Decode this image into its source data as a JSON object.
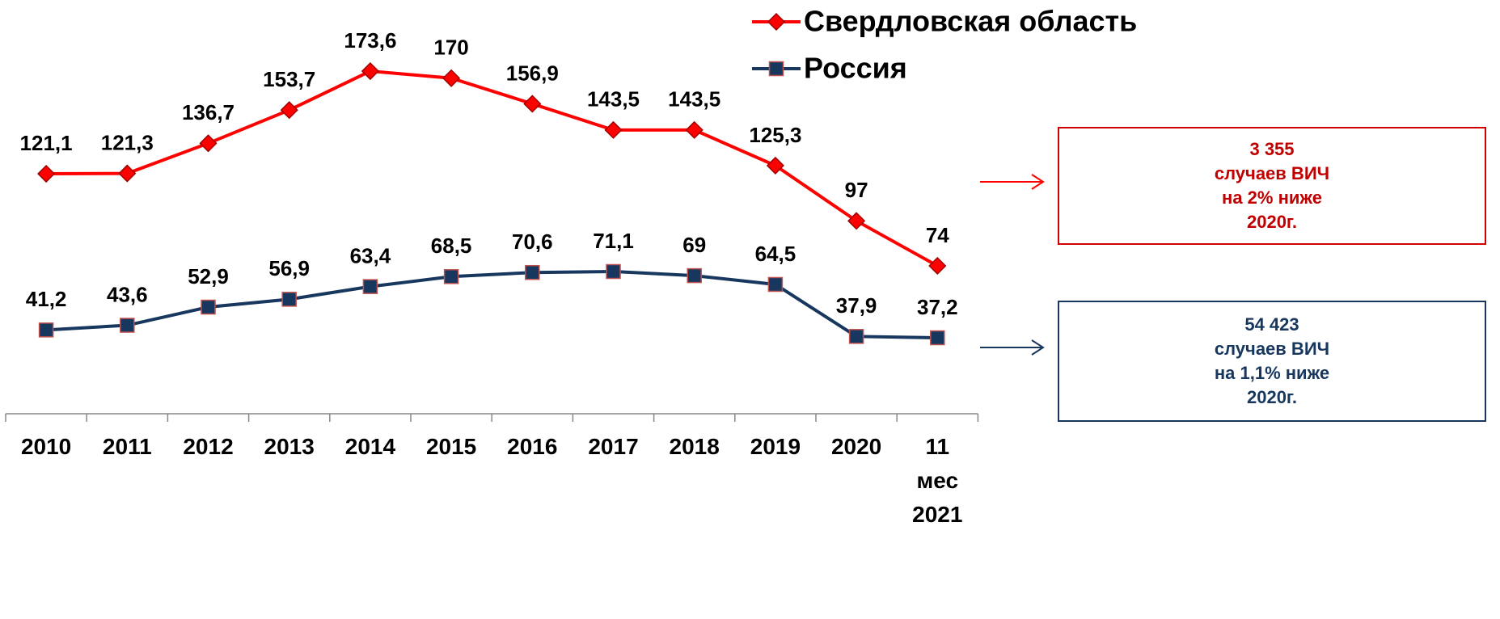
{
  "chart_data": {
    "type": "line",
    "categories": [
      "2010",
      "2011",
      "2012",
      "2013",
      "2014",
      "2015",
      "2016",
      "2017",
      "2018",
      "2019",
      "2020",
      "11 мес 2021"
    ],
    "series": [
      {
        "name": "Свердловская область",
        "color": "#ff0000",
        "marker": "diamond",
        "values": [
          121.1,
          121.3,
          136.7,
          153.7,
          173.6,
          170,
          156.9,
          143.5,
          143.5,
          125.3,
          97,
          74
        ],
        "value_labels": [
          "121,1",
          "121,3",
          "136,7",
          "153,7",
          "173,6",
          "170",
          "156,9",
          "143,5",
          "143,5",
          "125,3",
          "97",
          "74"
        ]
      },
      {
        "name": "Россия",
        "color": "#17375e",
        "marker": "square",
        "values": [
          41.2,
          43.6,
          52.9,
          56.9,
          63.4,
          68.5,
          70.6,
          71.1,
          69,
          64.5,
          37.9,
          37.2
        ],
        "value_labels": [
          "41,2",
          "43,6",
          "52,9",
          "56,9",
          "63,4",
          "68,5",
          "70,6",
          "71,1",
          "69",
          "64,5",
          "37,9",
          "37,2"
        ]
      }
    ],
    "ylim": [
      0,
      210
    ],
    "legend": "top-right",
    "annotations": [
      {
        "lines": [
          "3 355",
          "случаев ВИЧ",
          "на 2% ниже",
          "2020г."
        ],
        "color": "#c00000"
      },
      {
        "lines": [
          "54 423",
          "случаев ВИЧ",
          "на 1,1% ниже",
          "2020г."
        ],
        "color": "#17375e"
      }
    ]
  }
}
